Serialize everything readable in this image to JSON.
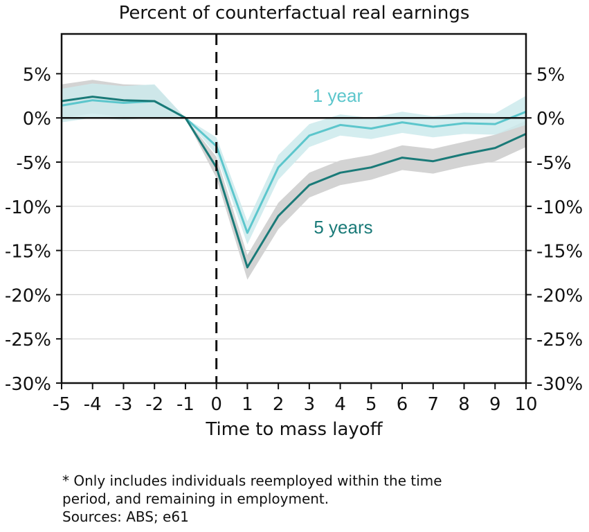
{
  "chart_data": {
    "type": "line",
    "title": "Percent of counterfactual real earnings",
    "xlabel": "Time to mass layoff",
    "ylabel": "",
    "x": [
      -5,
      -4,
      -3,
      -2,
      -1,
      0,
      1,
      2,
      3,
      4,
      5,
      6,
      7,
      8,
      9,
      10
    ],
    "x_tick_labels": [
      "-5",
      "-4",
      "-3",
      "-2",
      "-1",
      "0",
      "1",
      "2",
      "3",
      "4",
      "5",
      "6",
      "7",
      "8",
      "9",
      "10"
    ],
    "ylim": [
      -30,
      9.5
    ],
    "y_ticks": [
      5,
      0,
      -5,
      -10,
      -15,
      -20,
      -25,
      -30
    ],
    "y_tick_labels": [
      "5%",
      "0%",
      "-5%",
      "-10%",
      "-15%",
      "-20%",
      "-25%",
      "-30%"
    ],
    "grid": "horizontal",
    "reference_line": {
      "type": "vertical-dashed",
      "x": 0
    },
    "series": [
      {
        "name": "1 year",
        "color": "#5cc6cc",
        "band_color": "#cdeaec",
        "values": [
          1.4,
          2.0,
          1.7,
          1.9,
          0.0,
          -3.2,
          -13.0,
          -5.6,
          -2.0,
          -0.8,
          -1.2,
          -0.5,
          -1.0,
          -0.6,
          -0.7,
          0.7
        ],
        "lower": [
          -0.5,
          0.0,
          -0.2,
          0.0,
          0.0,
          -4.2,
          -14.3,
          -7.0,
          -3.3,
          -2.0,
          -2.4,
          -1.7,
          -2.2,
          -1.8,
          -1.9,
          -0.8
        ],
        "upper": [
          3.3,
          3.9,
          3.6,
          3.8,
          0.0,
          -2.2,
          -11.7,
          -4.2,
          -0.7,
          0.4,
          0.0,
          0.7,
          0.2,
          0.6,
          0.5,
          2.5
        ]
      },
      {
        "name": "5 years",
        "color": "#1a7a78",
        "band_color": "#d3d3d3",
        "values": [
          1.9,
          2.4,
          2.0,
          1.9,
          0.0,
          -5.6,
          -16.9,
          -11.1,
          -7.6,
          -6.2,
          -5.6,
          -4.5,
          -4.9,
          -4.1,
          -3.4,
          -1.8
        ],
        "lower": [
          0.0,
          0.5,
          0.1,
          0.0,
          0.0,
          -6.8,
          -18.3,
          -12.6,
          -9.0,
          -7.6,
          -7.0,
          -5.9,
          -6.3,
          -5.5,
          -4.9,
          -3.3
        ],
        "upper": [
          3.8,
          4.3,
          3.8,
          3.7,
          0.0,
          -4.4,
          -15.5,
          -9.6,
          -6.2,
          -4.8,
          -4.2,
          -3.1,
          -3.5,
          -2.7,
          -1.9,
          -0.3
        ]
      }
    ]
  },
  "footnote": {
    "line1": "* Only includes individuals reemployed within the time",
    "line2": "period, and remaining in employment.",
    "line3": "Sources: ABS; e61"
  }
}
